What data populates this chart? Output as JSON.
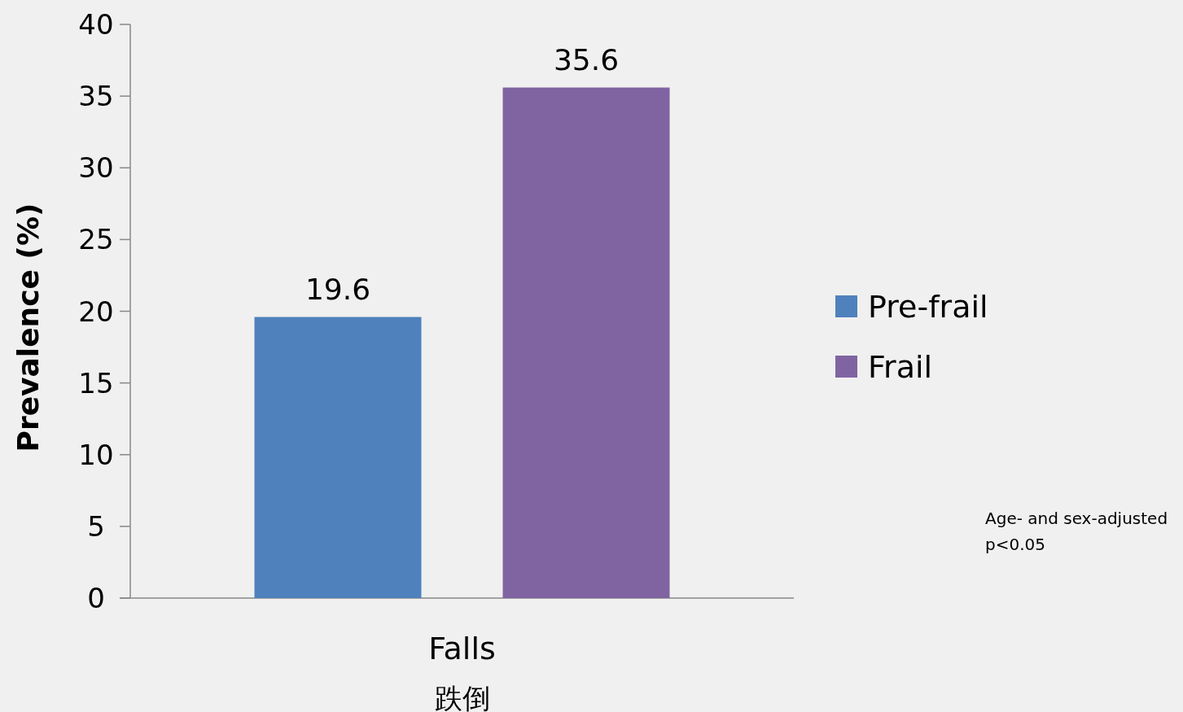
{
  "chart_data": {
    "type": "bar",
    "ylabel": "Prevalence (%)",
    "categories": [
      "Falls\n跌倒"
    ],
    "series": [
      {
        "name": "Pre-frail",
        "color": "#4f81bd",
        "values": [
          19.6
        ]
      },
      {
        "name": "Frail",
        "color": "#8064a2",
        "values": [
          35.6
        ]
      }
    ],
    "ylim": [
      0,
      40
    ],
    "yticks": [
      0,
      5,
      10,
      15,
      20,
      25,
      30,
      35,
      40
    ],
    "data_labels": true,
    "legend": "right",
    "grid": false,
    "annotations": [
      "Age- and sex-adjusted",
      "p<0.05"
    ]
  }
}
